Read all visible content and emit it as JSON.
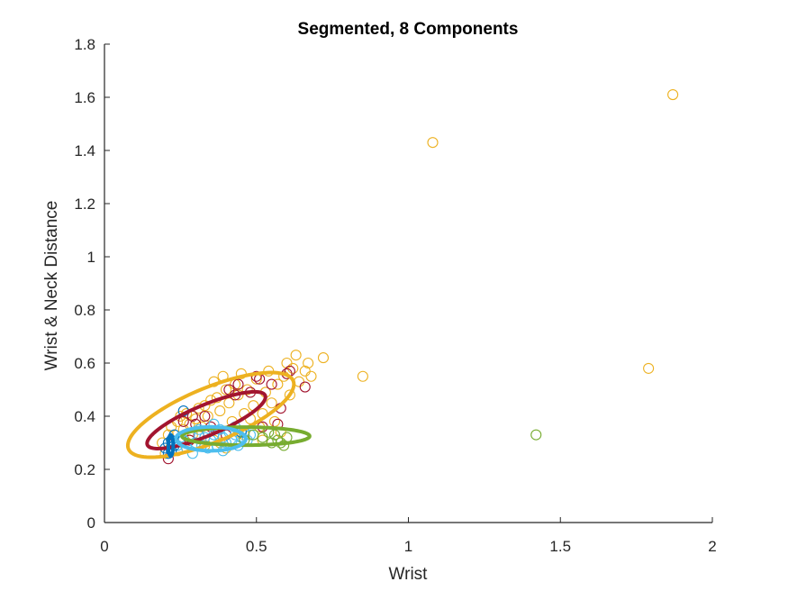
{
  "chart_data": {
    "type": "scatter",
    "title": "Segmented, 8 Components",
    "xlabel": "Wrist",
    "ylabel": "Wrist & Neck Distance",
    "xlim": [
      0,
      2
    ],
    "ylim": [
      0,
      1.8
    ],
    "xticks": [
      0,
      0.5,
      1,
      1.5,
      2
    ],
    "xtick_labels": [
      "0",
      "0.5",
      "1",
      "1.5",
      "2"
    ],
    "yticks": [
      0,
      0.2,
      0.4,
      0.6,
      0.8,
      1.0,
      1.2,
      1.4,
      1.6,
      1.8
    ],
    "ytick_labels": [
      "0",
      "0.2",
      "0.4",
      "0.6",
      "0.8",
      "1",
      "1.2",
      "1.4",
      "1.6",
      "1.8"
    ],
    "grid": false,
    "legend": "none",
    "marker": "open-circle",
    "series": [
      {
        "color": "#EDB120",
        "points": [
          [
            0.19,
            0.3
          ],
          [
            0.21,
            0.33
          ],
          [
            0.22,
            0.36
          ],
          [
            0.24,
            0.38
          ],
          [
            0.25,
            0.4
          ],
          [
            0.26,
            0.35
          ],
          [
            0.27,
            0.41
          ],
          [
            0.28,
            0.37
          ],
          [
            0.29,
            0.33
          ],
          [
            0.3,
            0.39
          ],
          [
            0.31,
            0.43
          ],
          [
            0.32,
            0.36
          ],
          [
            0.33,
            0.44
          ],
          [
            0.34,
            0.4
          ],
          [
            0.35,
            0.46
          ],
          [
            0.36,
            0.53
          ],
          [
            0.37,
            0.47
          ],
          [
            0.38,
            0.42
          ],
          [
            0.39,
            0.55
          ],
          [
            0.4,
            0.5
          ],
          [
            0.41,
            0.45
          ],
          [
            0.42,
            0.38
          ],
          [
            0.43,
            0.52
          ],
          [
            0.44,
            0.48
          ],
          [
            0.45,
            0.56
          ],
          [
            0.46,
            0.41
          ],
          [
            0.47,
            0.5
          ],
          [
            0.48,
            0.39
          ],
          [
            0.49,
            0.44
          ],
          [
            0.5,
            0.54
          ],
          [
            0.51,
            0.36
          ],
          [
            0.52,
            0.41
          ],
          [
            0.53,
            0.49
          ],
          [
            0.54,
            0.57
          ],
          [
            0.55,
            0.45
          ],
          [
            0.56,
            0.38
          ],
          [
            0.57,
            0.52
          ],
          [
            0.58,
            0.34
          ],
          [
            0.59,
            0.55
          ],
          [
            0.6,
            0.6
          ],
          [
            0.61,
            0.48
          ],
          [
            0.62,
            0.58
          ],
          [
            0.63,
            0.63
          ],
          [
            0.64,
            0.53
          ],
          [
            0.66,
            0.57
          ],
          [
            0.67,
            0.6
          ],
          [
            0.68,
            0.55
          ],
          [
            0.72,
            0.62
          ],
          [
            0.85,
            0.55
          ],
          [
            1.08,
            1.43
          ],
          [
            1.79,
            0.58
          ],
          [
            1.87,
            1.61
          ],
          [
            0.33,
            0.29
          ],
          [
            0.36,
            0.31
          ],
          [
            0.4,
            0.28
          ],
          [
            0.44,
            0.34
          ],
          [
            0.28,
            0.31
          ],
          [
            0.24,
            0.27
          ],
          [
            0.2,
            0.26
          ],
          [
            0.46,
            0.33
          ],
          [
            0.52,
            0.31
          ],
          [
            0.38,
            0.3
          ]
        ]
      },
      {
        "color": "#A2142F",
        "points": [
          [
            0.21,
            0.24
          ],
          [
            0.23,
            0.3
          ],
          [
            0.26,
            0.38
          ],
          [
            0.28,
            0.31
          ],
          [
            0.29,
            0.4
          ],
          [
            0.3,
            0.37
          ],
          [
            0.31,
            0.33
          ],
          [
            0.33,
            0.4
          ],
          [
            0.35,
            0.36
          ],
          [
            0.4,
            0.33
          ],
          [
            0.41,
            0.5
          ],
          [
            0.43,
            0.48
          ],
          [
            0.44,
            0.52
          ],
          [
            0.46,
            0.34
          ],
          [
            0.48,
            0.49
          ],
          [
            0.5,
            0.55
          ],
          [
            0.51,
            0.54
          ],
          [
            0.52,
            0.36
          ],
          [
            0.55,
            0.52
          ],
          [
            0.57,
            0.37
          ],
          [
            0.58,
            0.43
          ],
          [
            0.6,
            0.56
          ],
          [
            0.61,
            0.57
          ],
          [
            0.66,
            0.51
          ]
        ]
      },
      {
        "color": "#4DBEEE",
        "points": [
          [
            0.22,
            0.27
          ],
          [
            0.24,
            0.29
          ],
          [
            0.26,
            0.31
          ],
          [
            0.27,
            0.28
          ],
          [
            0.28,
            0.33
          ],
          [
            0.3,
            0.3
          ],
          [
            0.31,
            0.35
          ],
          [
            0.32,
            0.29
          ],
          [
            0.33,
            0.32
          ],
          [
            0.34,
            0.34
          ],
          [
            0.35,
            0.31
          ],
          [
            0.36,
            0.33
          ],
          [
            0.37,
            0.29
          ],
          [
            0.38,
            0.35
          ],
          [
            0.39,
            0.32
          ],
          [
            0.4,
            0.3
          ],
          [
            0.41,
            0.34
          ],
          [
            0.42,
            0.31
          ],
          [
            0.43,
            0.33
          ],
          [
            0.44,
            0.29
          ],
          [
            0.45,
            0.32
          ],
          [
            0.46,
            0.34
          ],
          [
            0.47,
            0.31
          ],
          [
            0.48,
            0.33
          ],
          [
            0.29,
            0.26
          ],
          [
            0.34,
            0.28
          ],
          [
            0.39,
            0.27
          ],
          [
            0.43,
            0.36
          ],
          [
            0.36,
            0.37
          ],
          [
            0.25,
            0.32
          ]
        ]
      },
      {
        "color": "#0072BD",
        "points": [
          [
            0.2,
            0.28
          ],
          [
            0.21,
            0.3
          ],
          [
            0.22,
            0.27
          ],
          [
            0.22,
            0.31
          ],
          [
            0.23,
            0.29
          ],
          [
            0.21,
            0.26
          ],
          [
            0.23,
            0.33
          ],
          [
            0.26,
            0.42
          ],
          [
            0.45,
            0.34
          ]
        ]
      },
      {
        "color": "#77AC30",
        "points": [
          [
            0.46,
            0.31
          ],
          [
            0.49,
            0.33
          ],
          [
            0.52,
            0.32
          ],
          [
            0.54,
            0.34
          ],
          [
            0.55,
            0.3
          ],
          [
            0.56,
            0.33
          ],
          [
            0.57,
            0.31
          ],
          [
            0.58,
            0.3
          ],
          [
            0.59,
            0.29
          ],
          [
            0.6,
            0.32
          ],
          [
            1.42,
            0.33
          ]
        ]
      }
    ],
    "ellipses": [
      {
        "color": "#EDB120",
        "cx": 0.35,
        "cy": 0.405,
        "a": 0.3,
        "b": 0.1,
        "angle_deg": 26
      },
      {
        "color": "#A2142F",
        "cx": 0.335,
        "cy": 0.385,
        "a": 0.215,
        "b": 0.056,
        "angle_deg": 26
      },
      {
        "color": "#77AC30",
        "cx": 0.465,
        "cy": 0.325,
        "a": 0.21,
        "b": 0.034,
        "angle_deg": 0
      },
      {
        "color": "#4DBEEE",
        "cx": 0.35,
        "cy": 0.315,
        "a": 0.115,
        "b": 0.045,
        "angle_deg": 0
      },
      {
        "color": "#0072BD",
        "cx": 0.218,
        "cy": 0.29,
        "a": 0.008,
        "b": 0.04,
        "angle_deg": 0
      }
    ]
  }
}
